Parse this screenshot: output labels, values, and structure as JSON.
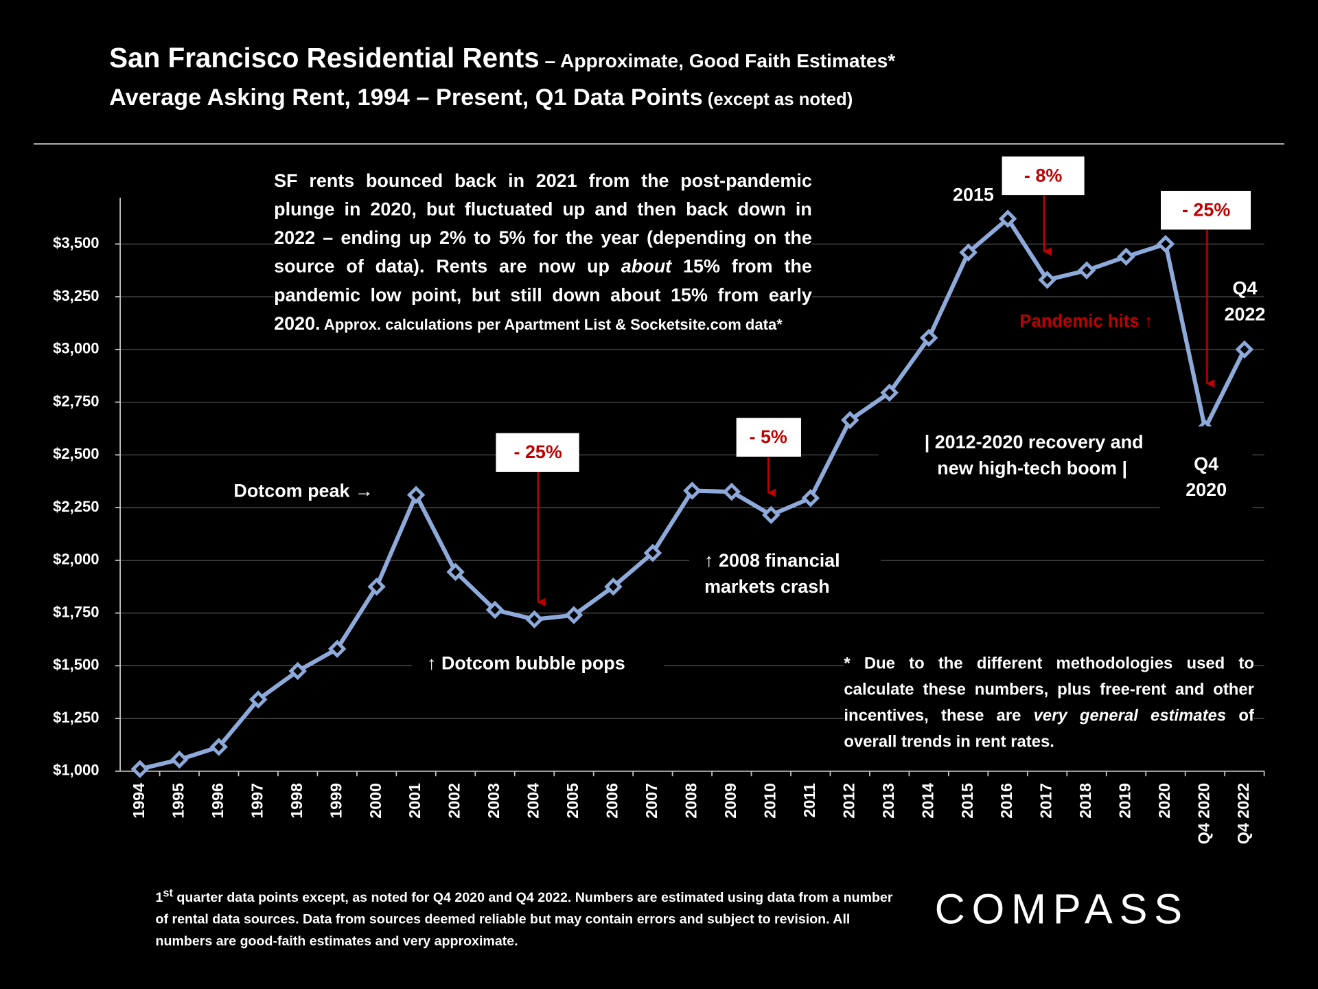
{
  "chart_data": {
    "type": "line",
    "title": "San Francisco Residential Rents",
    "title_suffix": " – Approximate, Good Faith Estimates*",
    "subtitle": "Average Asking Rent, 1994 – Present, Q1 Data Points",
    "subtitle_suffix": " (except as noted)",
    "categories": [
      "1994",
      "1995",
      "1996",
      "1997",
      "1998",
      "1999",
      "2000",
      "2001",
      "2002",
      "2003",
      "2004",
      "2005",
      "2006",
      "2007",
      "2008",
      "2009",
      "2010",
      "2011",
      "2012",
      "2013",
      "2014",
      "2015",
      "2016",
      "2017",
      "2018",
      "2019",
      "2020",
      "Q4 2020",
      "Q4 2022"
    ],
    "series": [
      {
        "name": "Average Asking Rent",
        "color": "#8eaadb",
        "values": [
          1010,
          1055,
          1115,
          1340,
          1475,
          1580,
          1875,
          2310,
          1945,
          1765,
          1720,
          1740,
          1875,
          2035,
          2330,
          2325,
          2215,
          2295,
          2665,
          2795,
          3055,
          3460,
          3620,
          3330,
          3375,
          3440,
          3500,
          2625,
          3000
        ]
      }
    ],
    "ylim": [
      1000,
      3720
    ],
    "yticks": [
      {
        "value": 1000,
        "label": "$1,000"
      },
      {
        "value": 1250,
        "label": "$1,250"
      },
      {
        "value": 1500,
        "label": "$1,500"
      },
      {
        "value": 1750,
        "label": "$1,750"
      },
      {
        "value": 2000,
        "label": "$2,000"
      },
      {
        "value": 2250,
        "label": "$2,250"
      },
      {
        "value": 2500,
        "label": "$2,500"
      },
      {
        "value": 2750,
        "label": "$2,750"
      },
      {
        "value": 3000,
        "label": "$3,000"
      },
      {
        "value": 3250,
        "label": "$3,250"
      },
      {
        "value": 3500,
        "label": "$3,500"
      }
    ],
    "grid": true,
    "annotations": {
      "dotcom_peak": "Dotcom peak →",
      "drop_2004": "- 25%",
      "bubble_pops": "↑ Dotcom bubble pops",
      "drop_2010": "- 5%",
      "crash_2008": [
        "↑ 2008 financial",
        "markets crash"
      ],
      "recovery": [
        "| 2012-2020 recovery and",
        "new high-tech boom |"
      ],
      "label_2015": "2015",
      "drop_2017": "- 8%",
      "drop_2020": "- 25%",
      "pandemic": "Pandemic hits ↑",
      "q4_2022": [
        "Q4",
        "2022"
      ],
      "q4_2020": [
        "Q4",
        "2020"
      ]
    },
    "note": [
      "SF rents bounced back in 2021 from the post-pandemic plunge in 2020, but fluctuated up and then back down in 2022 – ending up 2% to 5% for the year (depending on the source of data). Rents are now up ",
      "about",
      " 15% from the pandemic low point, but still down about 15% from early 2020.",
      " Approx. calculations per Apartment List & Socketsite.com data*"
    ],
    "footnote": [
      "* Due to the different methodologies used to calculate these numbers, plus free-rent and other incentives, these are ",
      "very general estimates",
      " of overall trends in rent rates."
    ],
    "bottom_note": [
      "1",
      "st",
      " quarter data points except, as noted for Q4 2020 and Q4 2022. Numbers are estimated using data from a number of rental data sources. Data from sources deemed reliable but may contain errors and subject to revision. All numbers are good-faith estimates and very approximate."
    ],
    "logo": "COMPASS"
  }
}
